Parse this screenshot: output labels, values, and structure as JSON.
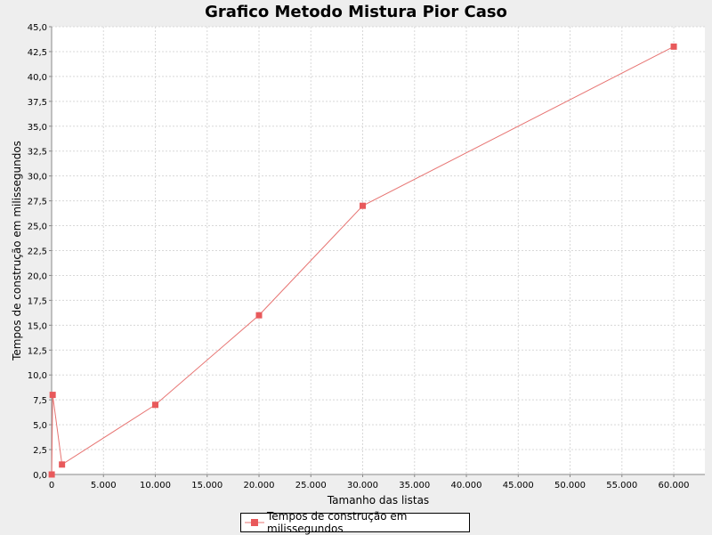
{
  "colors": {
    "background": "#eeeeee",
    "plot_background": "#ffffff",
    "gridline": "#d8d8d8",
    "series": "#e8595b",
    "series_line": "#e77472",
    "axis": "#888888",
    "text": "#000000"
  },
  "chart_data": {
    "type": "line",
    "title": "Grafico Metodo Mistura Pior Caso",
    "xlabel": "Tamanho das listas",
    "ylabel": "Tempos de construção em milissegundos",
    "xlim": [
      0,
      63000
    ],
    "ylim": [
      0,
      45
    ],
    "x_ticks": [
      "0",
      "5.000",
      "10.000",
      "15.000",
      "20.000",
      "25.000",
      "30.000",
      "35.000",
      "40.000",
      "45.000",
      "50.000",
      "55.000",
      "60.000"
    ],
    "y_ticks": [
      "0,0",
      "2,5",
      "5,0",
      "7,5",
      "10,0",
      "12,5",
      "15,0",
      "17,5",
      "20,0",
      "22,5",
      "25,0",
      "27,5",
      "30,0",
      "32,5",
      "35,0",
      "37,5",
      "40,0",
      "42,5",
      "45,0"
    ],
    "grid": true,
    "legend_position": "bottom",
    "series": [
      {
        "name": "Tempos de construção em milissegundos",
        "marker": "square",
        "points": [
          {
            "x": 10,
            "y": 0
          },
          {
            "x": 100,
            "y": 8
          },
          {
            "x": 1000,
            "y": 1
          },
          {
            "x": 10000,
            "y": 7
          },
          {
            "x": 20000,
            "y": 16
          },
          {
            "x": 30000,
            "y": 27
          },
          {
            "x": 60000,
            "y": 43
          }
        ]
      }
    ]
  }
}
